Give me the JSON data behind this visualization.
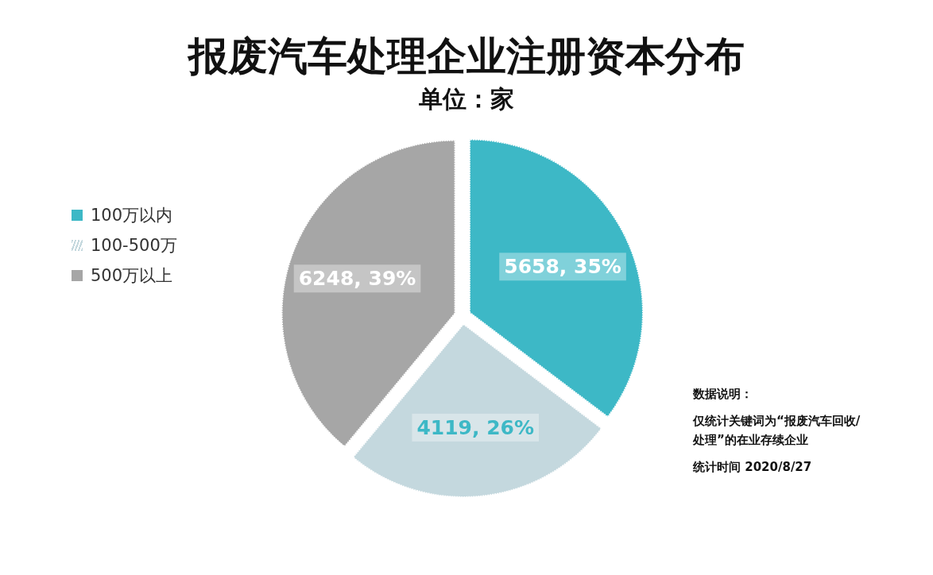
{
  "chart_data": {
    "type": "pie",
    "title": "报废汽车处理企业注册资本分布",
    "subtitle": "单位：家",
    "categories": [
      "100万以内",
      "100-500万",
      "500万以上"
    ],
    "values": [
      5658,
      4119,
      6248
    ],
    "value_labels": [
      "5658, 35%",
      "4119, 26%",
      "6248, 39%"
    ],
    "colors": [
      "#3db8c6",
      "#c4d8de",
      "#a6a6a6"
    ],
    "legend": "left",
    "annotations": [
      "数据说明：",
      "仅统计关键词为“报废汽车回收/处理”的在业存续企业",
      "统计时间 2020/8/27"
    ]
  }
}
